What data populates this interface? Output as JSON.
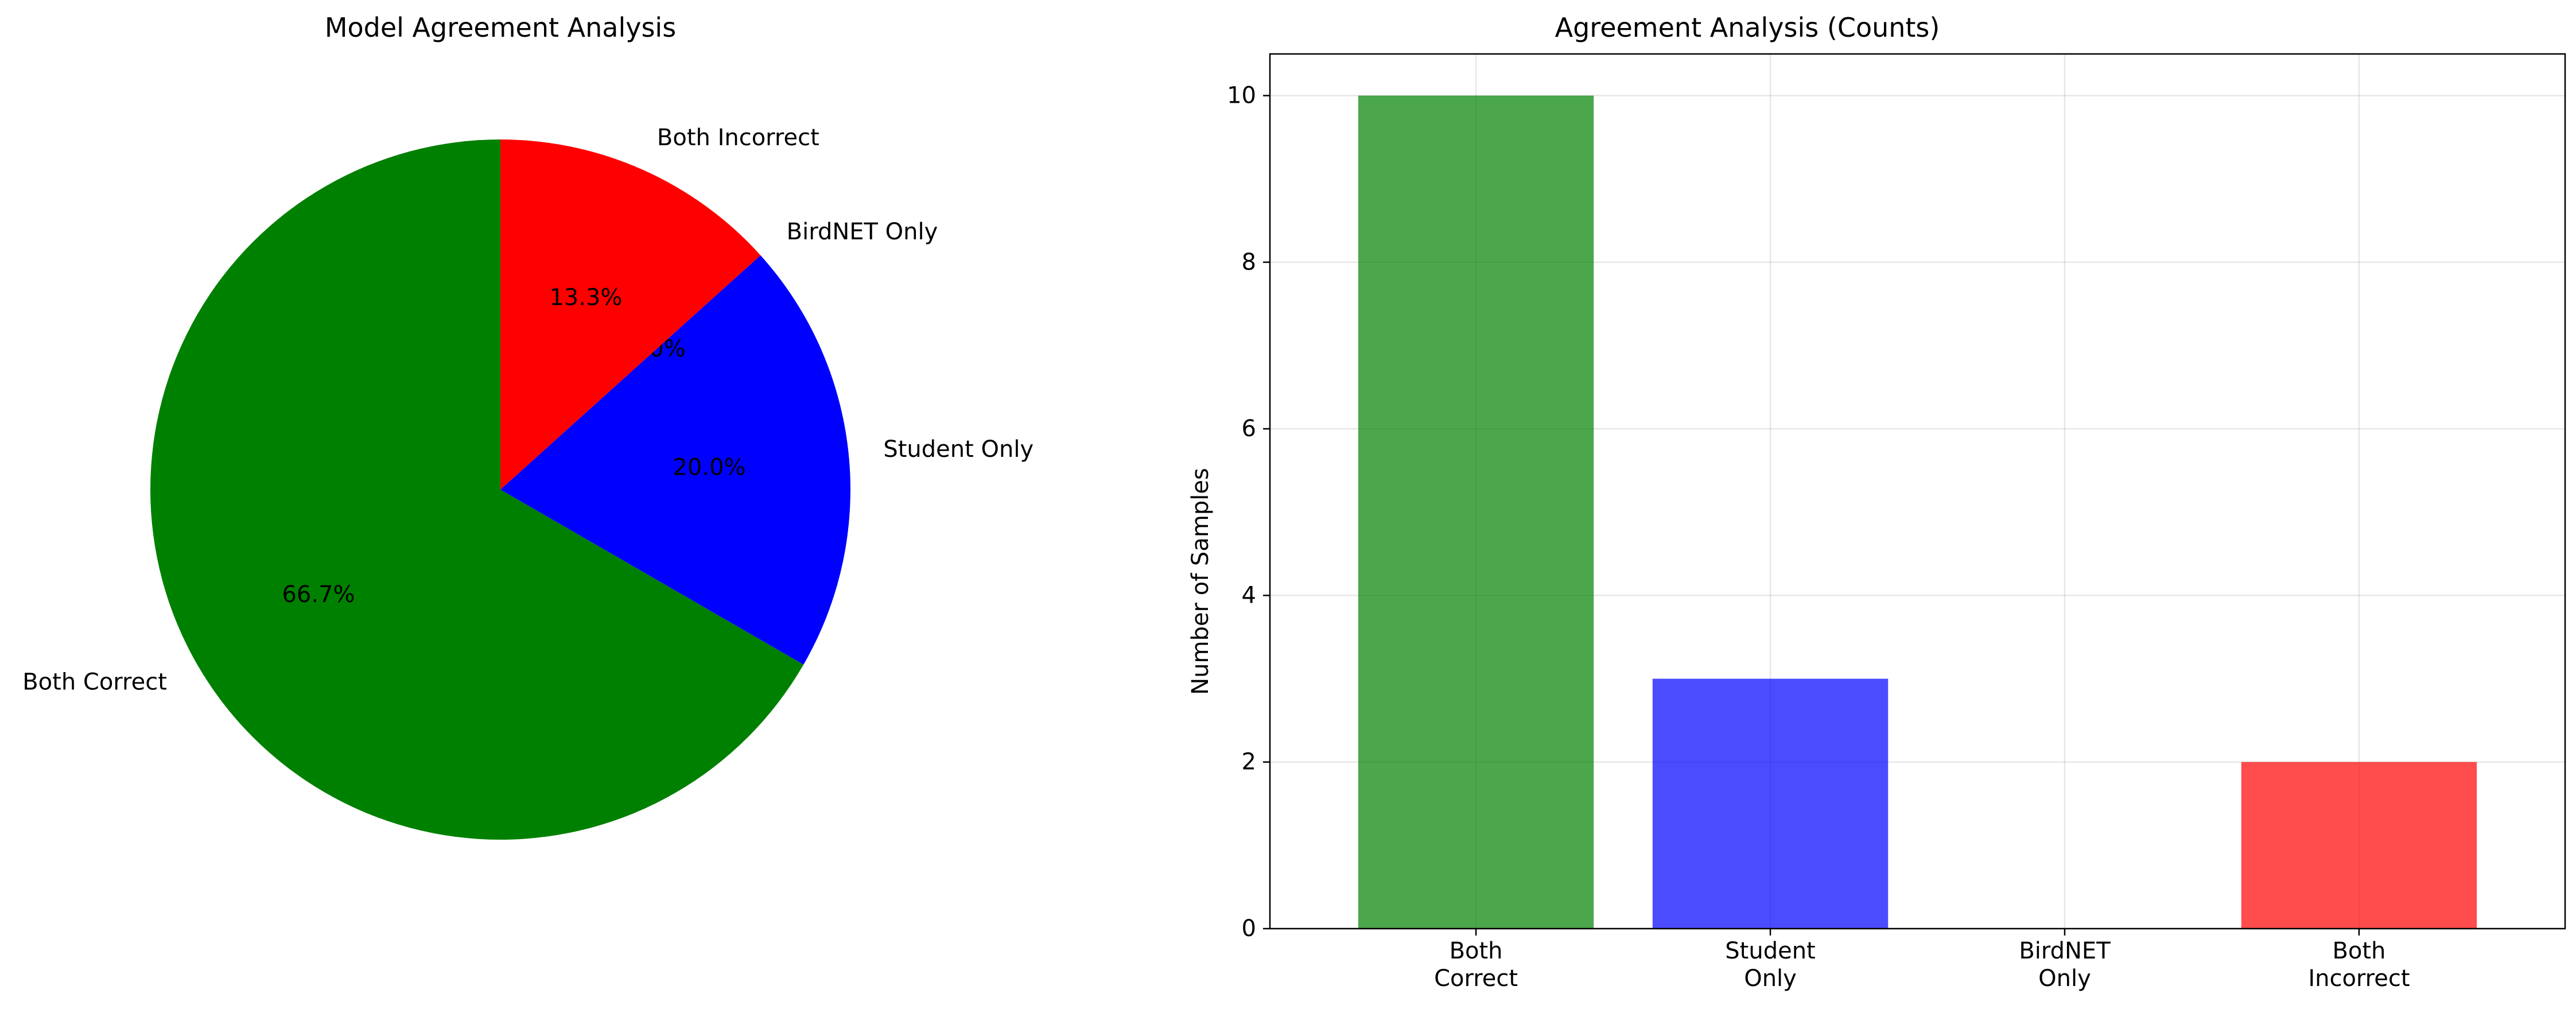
{
  "chart_data": [
    {
      "type": "pie",
      "title": "Model Agreement Analysis",
      "labels": [
        "Both Correct",
        "Student Only",
        "BirdNET Only",
        "Both Incorrect"
      ],
      "values": [
        10,
        3,
        0,
        2
      ],
      "percent_labels": [
        "66.7%",
        "20.0%",
        "0.0%",
        "13.3%"
      ],
      "colors": [
        "#008000",
        "#0000ff",
        "#ffa500",
        "#ff0000"
      ],
      "start_angle": 90,
      "direction": "counterclockwise"
    },
    {
      "type": "bar",
      "title": "Agreement Analysis (Counts)",
      "categories": [
        "Both\nCorrect",
        "Student\nOnly",
        "BirdNET\nOnly",
        "Both\nIncorrect"
      ],
      "values": [
        10,
        3,
        0,
        2
      ],
      "colors": [
        "#008000",
        "#0000ff",
        "#ffa500",
        "#ff0000"
      ],
      "bar_alpha": 0.7,
      "xlabel": "",
      "ylabel": "Number of Samples",
      "ylim": [
        0,
        10.5
      ],
      "yticks": [
        0,
        2,
        4,
        6,
        8,
        10
      ],
      "grid": true
    }
  ]
}
